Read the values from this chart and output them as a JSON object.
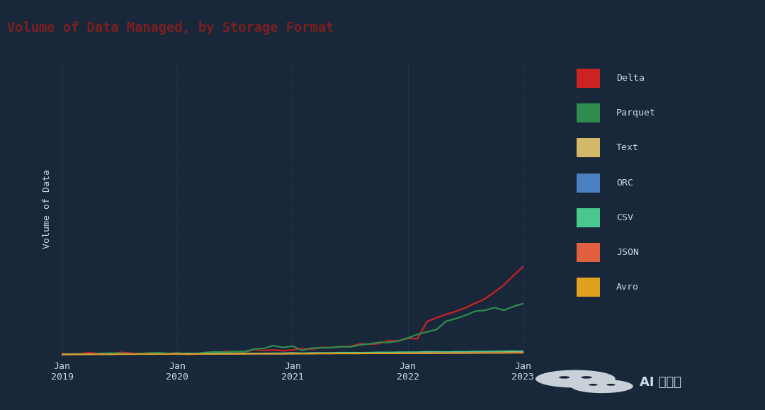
{
  "title": "Volume of Data Managed, by Storage Format",
  "ylabel": "Volume of Data",
  "bg_color": "#18273a",
  "plot_bg_color": "#18273a",
  "title_bg_color": "#e8d0cc",
  "title_text_color": "#7a2020",
  "grid_color": "#2a3f58",
  "text_color": "#c8d8e8",
  "legend_bg_color": "#1e3350",
  "series": [
    {
      "name": "Delta",
      "color": "#cc2222",
      "linewidth": 1.6
    },
    {
      "name": "Parquet",
      "color": "#2d8c4e",
      "linewidth": 1.6
    },
    {
      "name": "Text",
      "color": "#d4b86a",
      "linewidth": 1.2
    },
    {
      "name": "ORC",
      "color": "#4a7fc0",
      "linewidth": 1.2
    },
    {
      "name": "CSV",
      "color": "#48c78e",
      "linewidth": 1.2
    },
    {
      "name": "JSON",
      "color": "#e06040",
      "linewidth": 1.2
    },
    {
      "name": "Avro",
      "color": "#e0a020",
      "linewidth": 1.2
    }
  ],
  "xtick_labels": [
    "Jan\n2019",
    "Jan\n2020",
    "Jan\n2021",
    "Jan\n2022",
    "Jan\n2023"
  ],
  "xtick_positions": [
    0,
    12,
    24,
    36,
    48
  ],
  "n_points": 49,
  "watermark": "AI 共存派"
}
